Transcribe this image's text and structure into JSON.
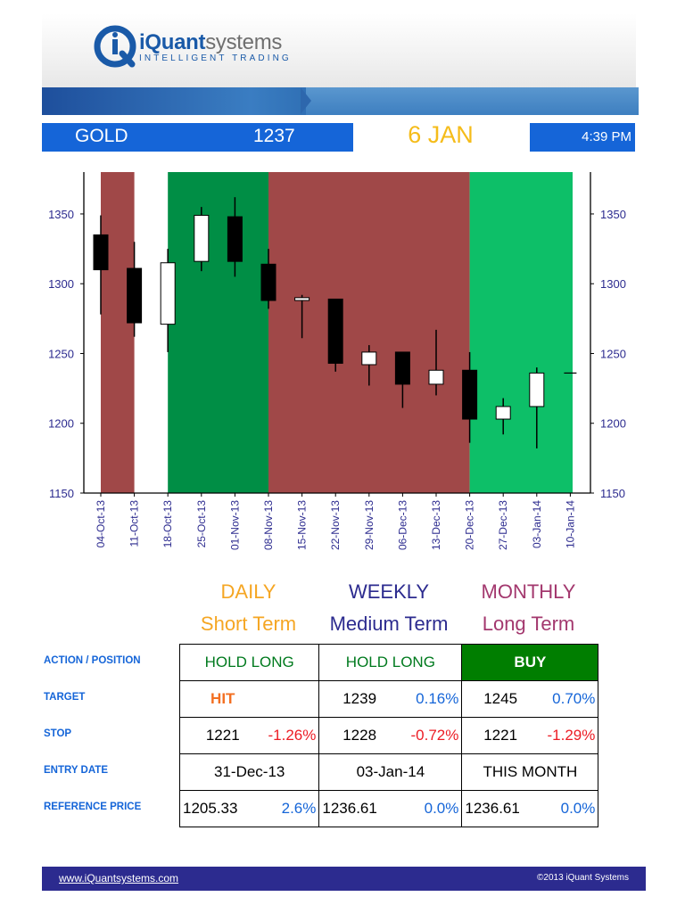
{
  "brand": {
    "name_bold": "iQuant",
    "name_light": "systems",
    "tagline": "INTELLIGENT TRADING",
    "colors": {
      "primary": "#1a5aa8",
      "accent": "#1565d8",
      "footer": "#2c2b8f"
    }
  },
  "ticker": {
    "symbol": "GOLD",
    "price": "1237",
    "date": "6 JAN",
    "time": "4:39 PM"
  },
  "chart_data": {
    "type": "candlestick",
    "x": [
      "04-Oct-13",
      "11-Oct-13",
      "18-Oct-13",
      "25-Oct-13",
      "01-Nov-13",
      "08-Nov-13",
      "15-Nov-13",
      "22-Nov-13",
      "29-Nov-13",
      "06-Dec-13",
      "13-Dec-13",
      "20-Dec-13",
      "27-Dec-13",
      "03-Jan-14",
      "10-Jan-14"
    ],
    "ohlc": [
      {
        "open": 1335,
        "high": 1349,
        "low": 1278,
        "close": 1310
      },
      {
        "open": 1311,
        "high": 1330,
        "low": 1262,
        "close": 1272
      },
      {
        "open": 1271,
        "high": 1325,
        "low": 1251,
        "close": 1315
      },
      {
        "open": 1316,
        "high": 1355,
        "low": 1309,
        "close": 1349
      },
      {
        "open": 1348,
        "high": 1362,
        "low": 1305,
        "close": 1316
      },
      {
        "open": 1314,
        "high": 1325,
        "low": 1282,
        "close": 1288
      },
      {
        "open": 1288,
        "high": 1292,
        "low": 1261,
        "close": 1290
      },
      {
        "open": 1289,
        "high": 1289,
        "low": 1237,
        "close": 1243
      },
      {
        "open": 1242,
        "high": 1256,
        "low": 1227,
        "close": 1251
      },
      {
        "open": 1251,
        "high": 1251,
        "low": 1211,
        "close": 1228
      },
      {
        "open": 1228,
        "high": 1267,
        "low": 1220,
        "close": 1238
      },
      {
        "open": 1238,
        "high": 1251,
        "low": 1186,
        "close": 1203
      },
      {
        "open": 1203,
        "high": 1218,
        "low": 1192,
        "close": 1212
      },
      {
        "open": 1212,
        "high": 1240,
        "low": 1182,
        "close": 1236
      },
      {
        "open": 1236,
        "high": 1236,
        "low": 1236,
        "close": 1236
      }
    ],
    "ylim": [
      1150,
      1380
    ],
    "yticks": [
      1150,
      1200,
      1250,
      1300,
      1350
    ],
    "regions": [
      {
        "from": 0,
        "to": 1,
        "color": "#a04848"
      },
      {
        "from": 2,
        "to": 5,
        "color": "#008e45"
      },
      {
        "from": 5,
        "to": 11,
        "color": "#a04848"
      },
      {
        "from": 11,
        "to": 14,
        "color": "#0dbf68"
      }
    ]
  },
  "columns": [
    {
      "head": "DAILY",
      "sub": "Short Term",
      "color": "#f5a623"
    },
    {
      "head": "WEEKLY",
      "sub": "Medium Term",
      "color": "#2c2b8f"
    },
    {
      "head": "MONTHLY",
      "sub": "Long Term",
      "color": "#a3386e"
    }
  ],
  "rows": {
    "action": {
      "label": "ACTION / POSITION",
      "daily": "HOLD LONG",
      "weekly": "HOLD LONG",
      "monthly": "BUY"
    },
    "target": {
      "label": "TARGET",
      "daily": "HIT",
      "weekly_value": "1239",
      "weekly_pct": "0.16%",
      "monthly_value": "1245",
      "monthly_pct": "0.70%"
    },
    "stop": {
      "label": "STOP",
      "daily_value": "1221",
      "daily_pct": "-1.26%",
      "weekly_value": "1228",
      "weekly_pct": "-0.72%",
      "monthly_value": "1221",
      "monthly_pct": "-1.29%"
    },
    "entry": {
      "label": "ENTRY DATE",
      "daily": "31-Dec-13",
      "weekly": "03-Jan-14",
      "monthly": "THIS MONTH"
    },
    "reference": {
      "label": "REFERENCE PRICE",
      "daily_value": "1205.33",
      "daily_pct": "2.6%",
      "weekly_value": "1236.61",
      "weekly_pct": "0.0%",
      "monthly_value": "1236.61",
      "monthly_pct": "0.0%"
    }
  },
  "footer": {
    "url": "www.iQuantsystems.com",
    "copyright": "©2013 iQuant Systems"
  }
}
